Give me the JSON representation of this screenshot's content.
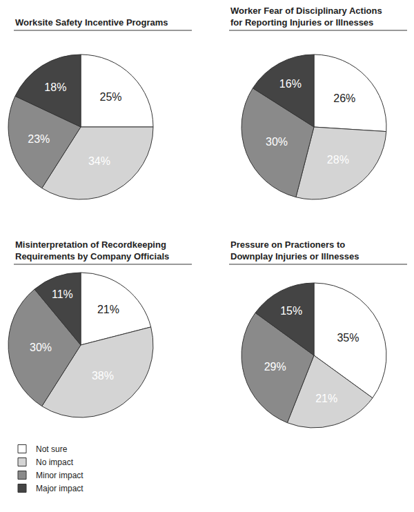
{
  "chart_data": [
    {
      "type": "pie",
      "title": "Worksite Safety Incentive Programs",
      "categories": [
        "Not sure",
        "No impact",
        "Minor impact",
        "Major impact"
      ],
      "values": [
        25,
        34,
        23,
        18
      ],
      "value_labels": [
        "25%",
        "34%",
        "23%",
        "18%"
      ],
      "colors": [
        "#ffffff",
        "#d4d4d4",
        "#8a8a8a",
        "#444444"
      ],
      "data_labels": true,
      "legend": "bottom left"
    },
    {
      "type": "pie",
      "title": "Worker Fear of Disciplinary Actions\nfor Reporting Injuries or Illnesses",
      "categories": [
        "Not sure",
        "No impact",
        "Minor impact",
        "Major impact"
      ],
      "values": [
        26,
        28,
        30,
        16
      ],
      "value_labels": [
        "26%",
        "28%",
        "30%",
        "16%"
      ],
      "colors": [
        "#ffffff",
        "#d4d4d4",
        "#8a8a8a",
        "#444444"
      ],
      "data_labels": true,
      "legend": "bottom left"
    },
    {
      "type": "pie",
      "title": "Misinterpretation of Recordkeeping\nRequirements by Company Officials",
      "categories": [
        "Not sure",
        "No impact",
        "Minor impact",
        "Major impact"
      ],
      "values": [
        21,
        38,
        30,
        11
      ],
      "value_labels": [
        "21%",
        "38%",
        "30%",
        "11%"
      ],
      "colors": [
        "#ffffff",
        "#d4d4d4",
        "#8a8a8a",
        "#444444"
      ],
      "data_labels": true,
      "legend": "bottom left"
    },
    {
      "type": "pie",
      "title": "Pressure on Practioners to\nDownplay Injuries or Illnesses",
      "categories": [
        "Not sure",
        "No impact",
        "Minor impact",
        "Major impact"
      ],
      "values": [
        35,
        21,
        29,
        15
      ],
      "value_labels": [
        "35%",
        "21%",
        "29%",
        "15%"
      ],
      "colors": [
        "#ffffff",
        "#d4d4d4",
        "#8a8a8a",
        "#444444"
      ],
      "data_labels": true,
      "legend": "bottom left"
    }
  ]
}
